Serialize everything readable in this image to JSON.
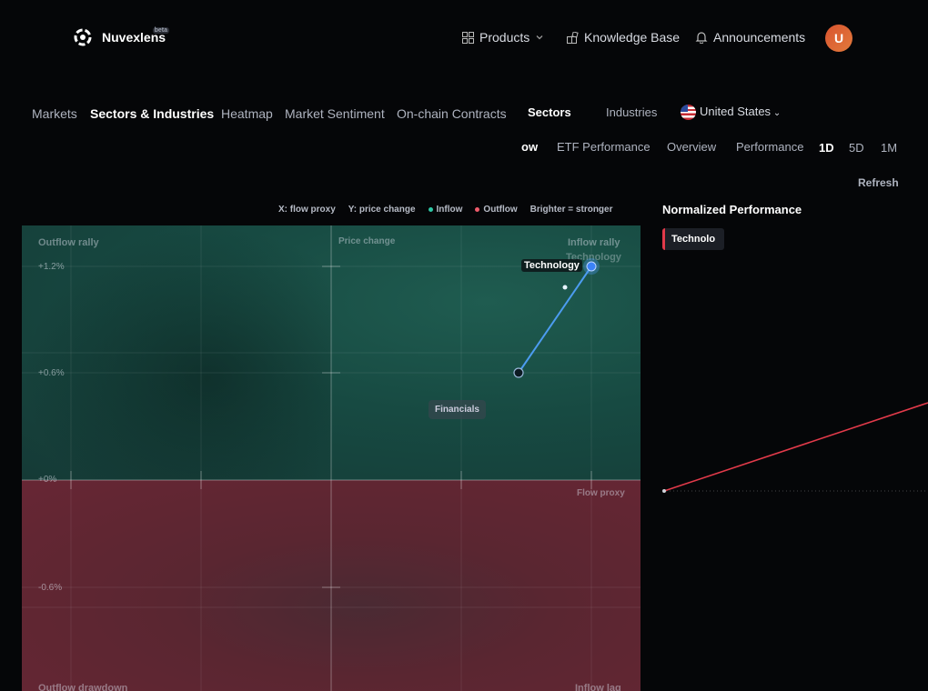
{
  "brand": {
    "name": "Nuvexlens",
    "badge": "beta"
  },
  "header_nav": {
    "products": "Products",
    "knowledge_base": "Knowledge Base",
    "announcements": "Announcements",
    "avatar_initial": "U"
  },
  "main_tabs": [
    "Markets",
    "Sectors & Industries",
    "Heatmap",
    "Market Sentiment",
    "On-chain Contracts"
  ],
  "scope_tabs": {
    "sectors": "Sectors",
    "industries": "Industries",
    "country": "United States"
  },
  "view_tabs": [
    "ow",
    "ETF Performance",
    "Overview",
    "Performance"
  ],
  "timeframes": [
    "1D",
    "5D",
    "1M"
  ],
  "refresh_label": "Refresh",
  "legend": {
    "x": "X: flow proxy",
    "y": "Y: price change",
    "inflow": "Inflow",
    "outflow": "Outflow",
    "brightness": "Brighter = stronger"
  },
  "colors": {
    "inflow": "#2ec7a6",
    "outflow": "#ef5b6b",
    "trail": "#4c9cf0",
    "accent": "#e23a4a"
  },
  "quadrants": {
    "top_left": "Outflow rally",
    "top_right": "Inflow rally",
    "bottom_left": "Outflow drawdown",
    "bottom_right": "Inflow lag"
  },
  "axis_labels": {
    "y_axis": "Price change",
    "x_axis": "Flow proxy"
  },
  "chart_data": {
    "type": "scatter",
    "y_ticks": [
      "+1.2%",
      "+0.6%",
      "+0%",
      "-0.6%"
    ],
    "points": [
      {
        "name": "Technology",
        "y": 1.2,
        "role": "current"
      },
      {
        "name": "Technology",
        "y": 0.6,
        "role": "trail-start"
      },
      {
        "name": "",
        "y": 1.08,
        "role": "trail-mid"
      }
    ],
    "labels": {
      "highlight": "Technology",
      "ghost": "Technology",
      "tooltip": "Financials"
    }
  },
  "right_panel": {
    "title": "Normalized Performance",
    "chip": "Technolo"
  }
}
